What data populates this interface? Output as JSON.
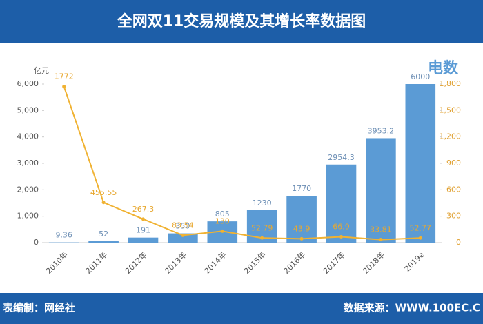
{
  "chart_data": {
    "type": "bar-line",
    "title": "全网双11交易规模及其增长率数据图",
    "y_unit": "亿元",
    "logo": "电数",
    "categories": [
      "2010年",
      "2011年",
      "2012年",
      "2013年",
      "2014年",
      "2015年",
      "2016年",
      "2017年",
      "2018年",
      "2019e"
    ],
    "series": [
      {
        "type": "bar",
        "color": "#5b9bd5",
        "values": [
          9.36,
          52,
          191,
          350,
          805,
          1230,
          1770,
          2954.3,
          3953.2,
          6000
        ]
      },
      {
        "type": "line",
        "axis": "y2",
        "color": "#f0b232",
        "values": [
          1772,
          455.55,
          267.3,
          83.54,
          130,
          52.79,
          43.9,
          66.9,
          33.81,
          52.77
        ]
      }
    ],
    "ylim": [
      0,
      6000
    ],
    "yticks": [
      0,
      {
        "value": 1000,
        "label": "1,000"
      },
      {
        "value": 2000,
        "label": "2,000"
      },
      {
        "value": 3000,
        "label": "3,000"
      },
      {
        "value": 4000,
        "label": "4,000"
      },
      {
        "value": 5000,
        "label": "5,000"
      },
      {
        "value": 6000,
        "label": "6,000"
      }
    ],
    "y2lim": [
      0,
      1800
    ],
    "y2ticks": [
      0,
      300,
      600,
      900,
      {
        "value": 1200,
        "label": "1,200"
      },
      {
        "value": 1500,
        "label": "1,500"
      },
      {
        "value": 1800,
        "label": "1,800"
      }
    ],
    "grid": false,
    "footer_left": "表编制：网经社",
    "footer_right": "数据来源：WWW.100EC.C"
  }
}
